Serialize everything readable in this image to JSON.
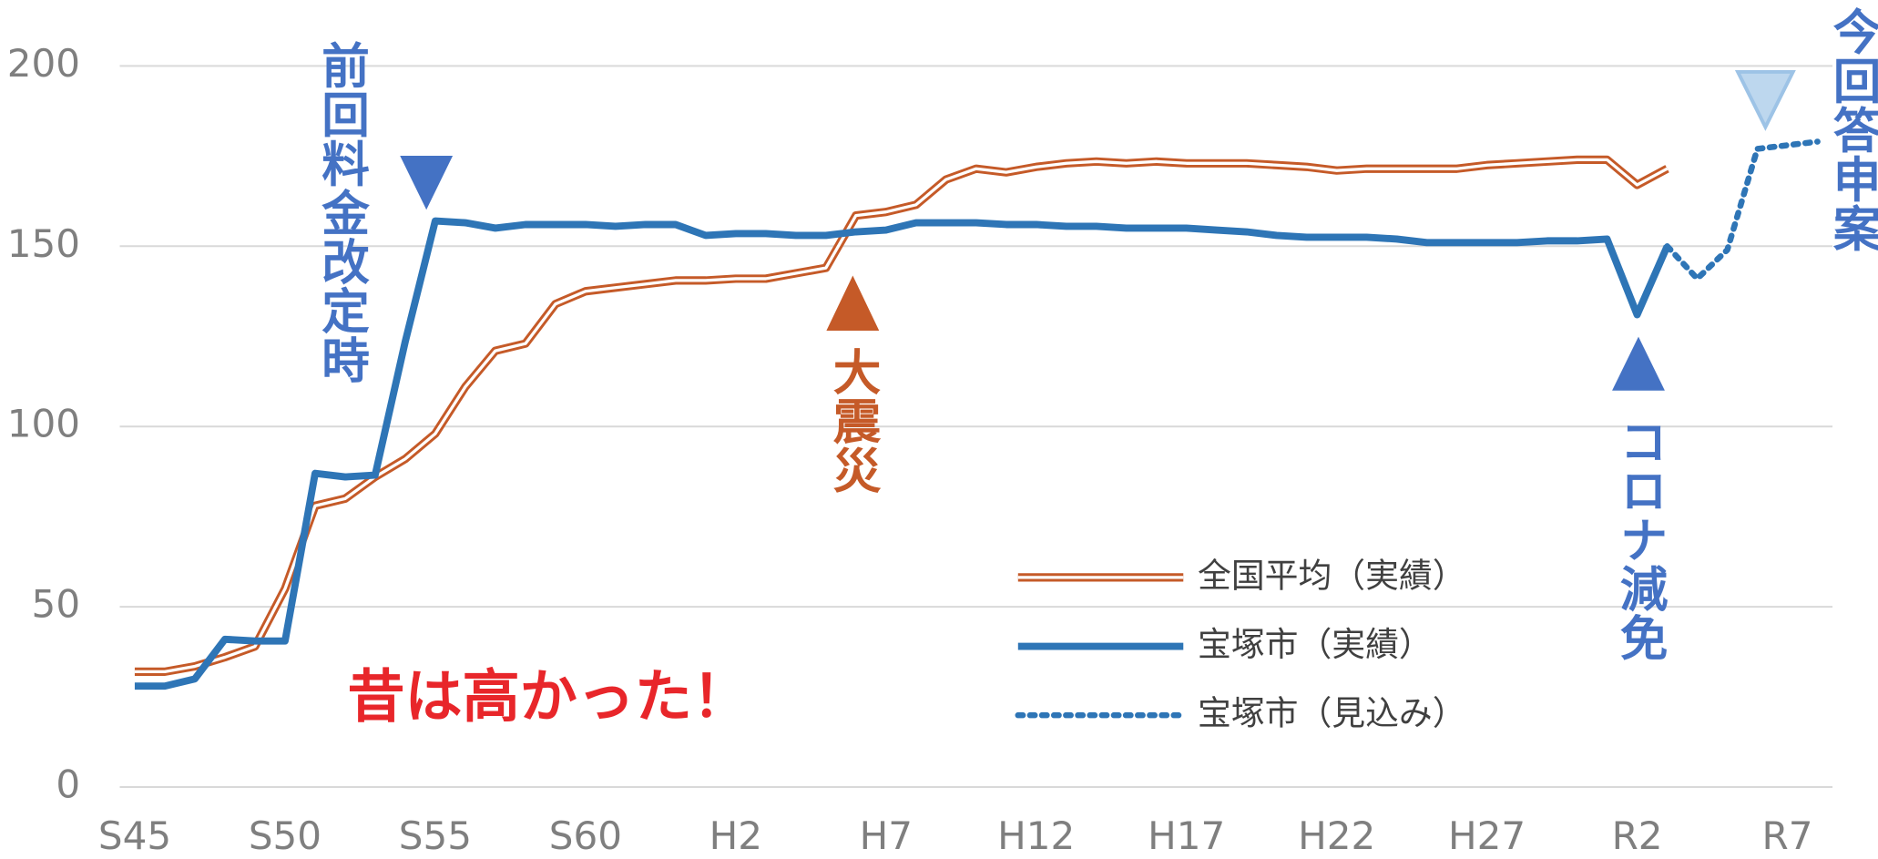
{
  "chart_data": {
    "type": "line",
    "categories": [
      "S45",
      null,
      null,
      null,
      null,
      "S50",
      null,
      null,
      null,
      null,
      "S55",
      null,
      null,
      null,
      null,
      "S60",
      null,
      null,
      null,
      null,
      "H2",
      null,
      null,
      null,
      null,
      "H7",
      null,
      null,
      null,
      null,
      "H12",
      null,
      null,
      null,
      null,
      "H17",
      null,
      null,
      null,
      null,
      "H22",
      null,
      null,
      null,
      null,
      "H27",
      null,
      null,
      null,
      null,
      "R2",
      null,
      null,
      null,
      null,
      "R7",
      null
    ],
    "series": [
      {
        "name": "全国平均（実績）",
        "color": "#c55a28",
        "style": "double",
        "values": [
          32,
          32,
          33.5,
          36,
          39,
          55,
          78,
          80,
          86,
          91,
          98,
          111,
          121,
          123,
          134,
          137.5,
          138.5,
          139.5,
          140.5,
          140.5,
          141,
          141,
          142.5,
          144,
          158.5,
          159.5,
          161.5,
          168.5,
          171.5,
          170.5,
          172,
          173,
          173.5,
          173,
          173.5,
          173,
          173,
          173,
          172.5,
          172,
          171,
          171.5,
          171.5,
          171.5,
          171.5,
          172.5,
          173,
          173.5,
          174,
          174,
          167,
          171.5,
          null,
          null,
          null,
          null,
          null
        ]
      },
      {
        "name": "宝塚市（実績）",
        "color": "#2e75b6",
        "style": "solid",
        "values": [
          28,
          28,
          30,
          41,
          40.5,
          40.5,
          87,
          86,
          86.5,
          123.5,
          157,
          156.5,
          155,
          156,
          156,
          156,
          155.5,
          156,
          156,
          153,
          153.5,
          153.5,
          153,
          153,
          154,
          154.5,
          156.5,
          156.5,
          156.5,
          156,
          156,
          155.5,
          155.5,
          155,
          155,
          155,
          154.5,
          154,
          153,
          152.5,
          152.5,
          152.5,
          152,
          151,
          151,
          151,
          151,
          151.5,
          151.5,
          152,
          131,
          150,
          null,
          null,
          null,
          null,
          null
        ]
      },
      {
        "name": "宝塚市（見込み）",
        "color": "#2e75b6",
        "style": "dotted",
        "values": [
          null,
          null,
          null,
          null,
          null,
          null,
          null,
          null,
          null,
          null,
          null,
          null,
          null,
          null,
          null,
          null,
          null,
          null,
          null,
          null,
          null,
          null,
          null,
          null,
          null,
          null,
          null,
          null,
          null,
          null,
          null,
          null,
          null,
          null,
          null,
          null,
          null,
          null,
          null,
          null,
          null,
          null,
          null,
          null,
          null,
          null,
          null,
          null,
          null,
          null,
          null,
          150,
          141,
          149,
          177,
          178,
          179
        ]
      }
    ],
    "ylim": [
      0,
      200
    ],
    "yticks": [
      0,
      50,
      100,
      150,
      200
    ],
    "grid": true,
    "annotations": [
      "前回料金改定時",
      "大震災",
      "コロナ減免",
      "今回答申案",
      "昔は高かった！"
    ]
  }
}
